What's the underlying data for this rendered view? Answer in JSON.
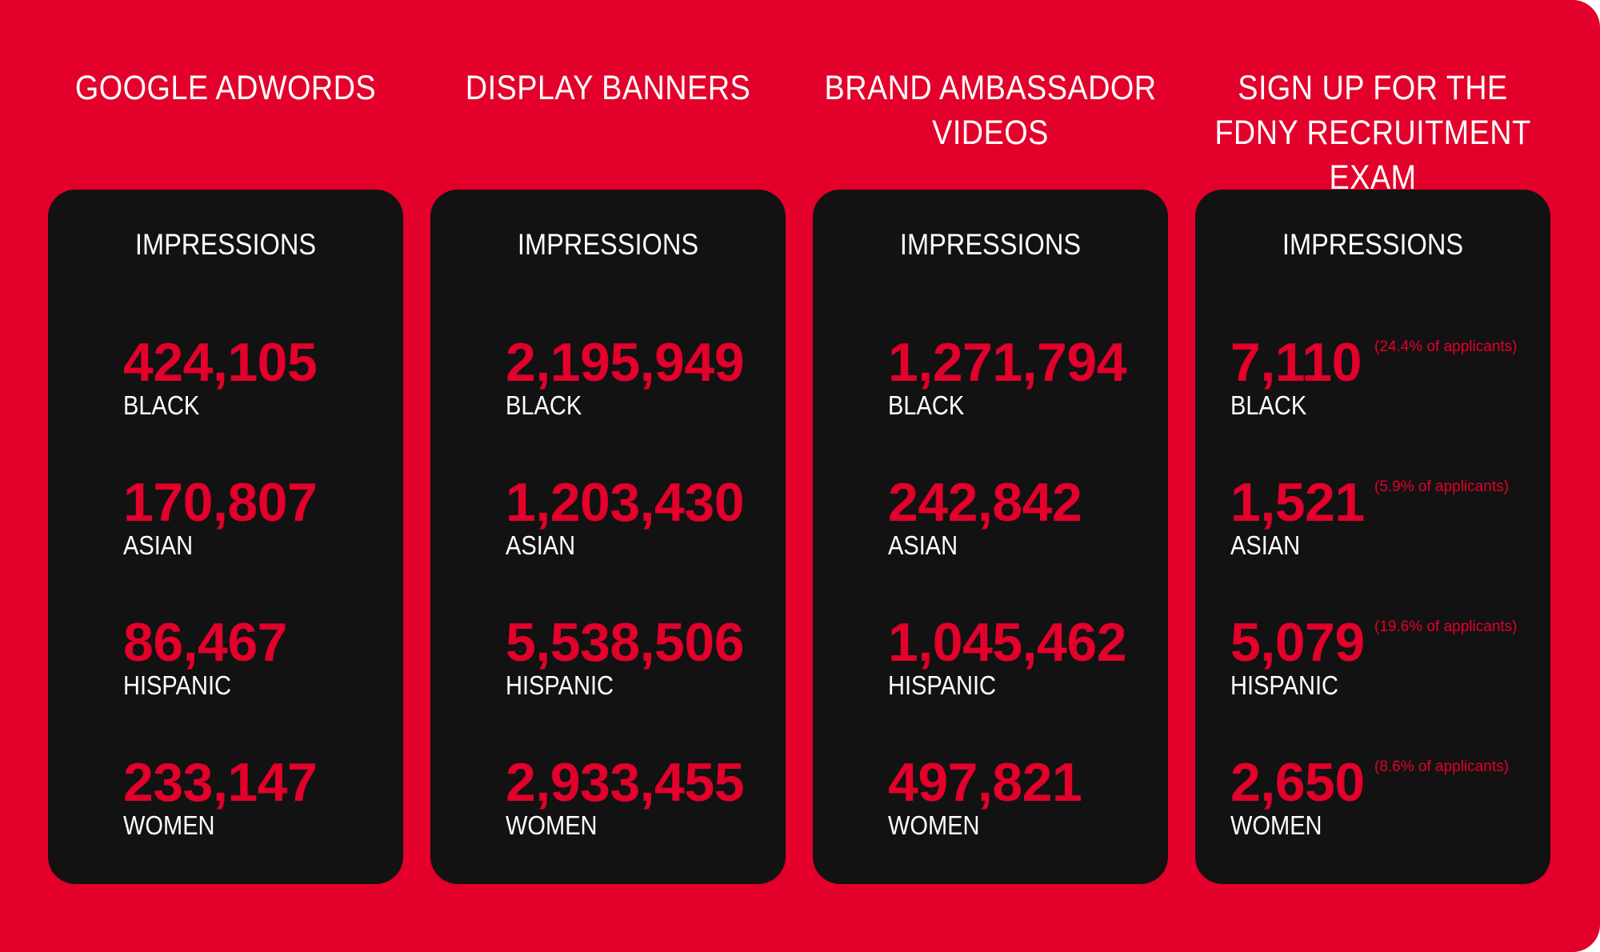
{
  "background_color": "#e3002b",
  "card_color": "#121212",
  "columns": [
    {
      "title": "GOOGLE ADWORDS",
      "heading": "IMPRESSIONS",
      "stats": [
        {
          "value": "424,105",
          "label": "BLACK",
          "note": ""
        },
        {
          "value": "170,807",
          "label": "ASIAN",
          "note": ""
        },
        {
          "value": "86,467",
          "label": "HISPANIC",
          "note": ""
        },
        {
          "value": "233,147",
          "label": "WOMEN",
          "note": ""
        }
      ]
    },
    {
      "title": "DISPLAY BANNERS",
      "heading": "IMPRESSIONS",
      "stats": [
        {
          "value": "2,195,949",
          "label": "BLACK",
          "note": ""
        },
        {
          "value": "1,203,430",
          "label": "ASIAN",
          "note": ""
        },
        {
          "value": "5,538,506",
          "label": "HISPANIC",
          "note": ""
        },
        {
          "value": "2,933,455",
          "label": "WOMEN",
          "note": ""
        }
      ]
    },
    {
      "title": "BRAND AMBASSADOR VIDEOS",
      "heading": "IMPRESSIONS",
      "stats": [
        {
          "value": "1,271,794",
          "label": "BLACK",
          "note": ""
        },
        {
          "value": "242,842",
          "label": "ASIAN",
          "note": ""
        },
        {
          "value": "1,045,462",
          "label": "HISPANIC",
          "note": ""
        },
        {
          "value": "497,821",
          "label": "WOMEN",
          "note": ""
        }
      ]
    },
    {
      "title": "SIGN UP FOR THE FDNY RECRUITMENT EXAM",
      "heading": "IMPRESSIONS",
      "stats": [
        {
          "value": "7,110",
          "label": "BLACK",
          "note": "(24.4% of applicants)"
        },
        {
          "value": "1,521",
          "label": "ASIAN",
          "note": "(5.9% of applicants)"
        },
        {
          "value": "5,079",
          "label": "HISPANIC",
          "note": "(19.6% of applicants)"
        },
        {
          "value": "2,650",
          "label": "WOMEN",
          "note": "(8.6% of applicants)"
        }
      ]
    }
  ]
}
